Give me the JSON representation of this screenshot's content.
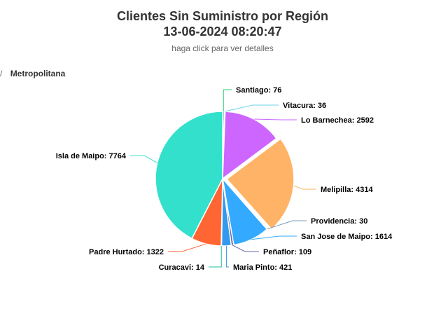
{
  "chart_data": {
    "type": "pie",
    "title_line1": "Clientes Sin Suministro por Región",
    "title_line2": "13-06-2024 08:20:47",
    "subtitle": "haga click para ver detalles",
    "region": "Metropolitana",
    "breadcrumb_sep": "/",
    "slices": [
      {
        "name": "Santiago",
        "value": 76,
        "color": "#2ecc71"
      },
      {
        "name": "Vitacura",
        "value": 36,
        "color": "#6fd3e8"
      },
      {
        "name": "Lo Barnechea",
        "value": 2592,
        "color": "#cc66ff"
      },
      {
        "name": "Melipilla",
        "value": 4314,
        "color": "#ffb366"
      },
      {
        "name": "Providencia",
        "value": 30,
        "color": "#7799bb"
      },
      {
        "name": "San Jose de Maipo",
        "value": 1614,
        "color": "#33aaff"
      },
      {
        "name": "Peñaflor",
        "value": 109,
        "color": "#6666aa"
      },
      {
        "name": "Maria Pinto",
        "value": 421,
        "color": "#3399ee"
      },
      {
        "name": "Curacavi",
        "value": 14,
        "color": "#22bb99"
      },
      {
        "name": "Padre Hurtado",
        "value": 1322,
        "color": "#ff6633"
      },
      {
        "name": "Isla de Maipo",
        "value": 7764,
        "color": "#33e0cc"
      }
    ]
  }
}
